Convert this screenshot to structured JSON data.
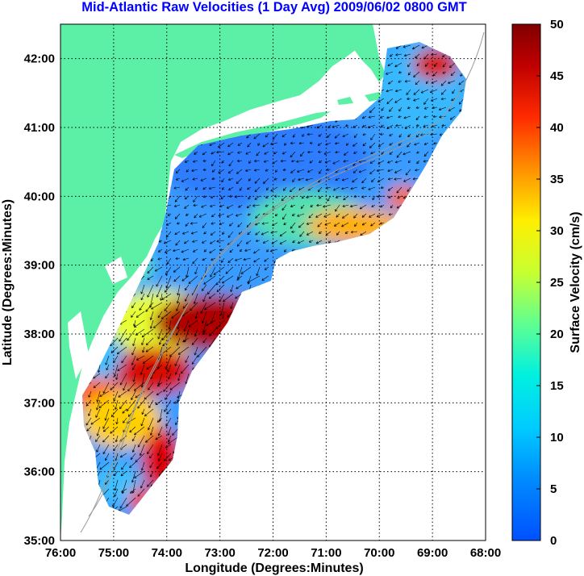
{
  "title": "Mid-Atlantic Raw Velocities (1 Day Avg) 2009/06/02 0800 GMT",
  "x_axis": {
    "label": "Longitude (Degrees:Minutes)",
    "ticks": [
      "76:00",
      "75:00",
      "74:00",
      "73:00",
      "72:00",
      "71:00",
      "70:00",
      "69:00",
      "68:00"
    ]
  },
  "y_axis": {
    "label": "Latitude (Degrees:Minutes)",
    "ticks": [
      "42:00",
      "41:00",
      "40:00",
      "39:00",
      "38:00",
      "37:00",
      "36:00",
      "35:00"
    ]
  },
  "colorbar": {
    "label": "Surface Velocity (cm/s)",
    "min": 0,
    "max": 50,
    "ticks": [
      "50",
      "45",
      "40",
      "35",
      "30",
      "25",
      "20",
      "15",
      "10",
      "5",
      "0"
    ]
  },
  "map": {
    "extent": {
      "lon_min": -76,
      "lon_max": -68,
      "lat_min": 35,
      "lat_max": 42.5
    },
    "land_color": "#5cf0a6",
    "grid_style": "dotted",
    "colormap": "jet"
  }
}
